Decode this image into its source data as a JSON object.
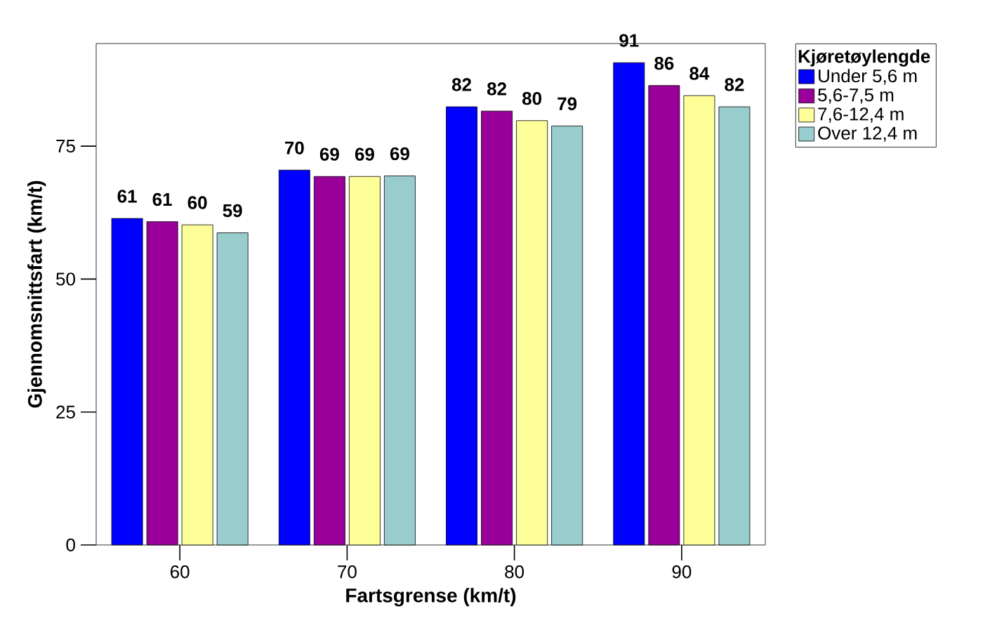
{
  "chart_data": {
    "type": "bar",
    "xlabel": "Fartsgrense (km/t)",
    "ylabel": "Gjennomsnittsfart (km/t)",
    "legend_title": "Kjøretøylengde",
    "categories": [
      "60",
      "70",
      "80",
      "90"
    ],
    "series": [
      {
        "name": "Under 5,6 m",
        "color": "#0000ff",
        "values": [
          61.4,
          70.5,
          82.4,
          90.7
        ],
        "value_labels": [
          "61",
          "70",
          "82",
          "91"
        ]
      },
      {
        "name": "5,6-7,5 m",
        "color": "#990099",
        "values": [
          60.8,
          69.3,
          81.6,
          86.4
        ],
        "value_labels": [
          "61",
          "69",
          "82",
          "86"
        ]
      },
      {
        "name": "7,6-12,4 m",
        "color": "#ffff99",
        "values": [
          60.2,
          69.3,
          79.8,
          84.5
        ],
        "value_labels": [
          "60",
          "69",
          "80",
          "84"
        ]
      },
      {
        "name": "Over 12,4 m",
        "color": "#99cccc",
        "values": [
          58.7,
          69.4,
          78.8,
          82.4
        ],
        "value_labels": [
          "59",
          "69",
          "79",
          "82"
        ]
      }
    ],
    "ylim": [
      0,
      94.3
    ],
    "yticks": [
      0,
      25,
      50,
      75
    ],
    "grid": false,
    "legend": "top right"
  }
}
